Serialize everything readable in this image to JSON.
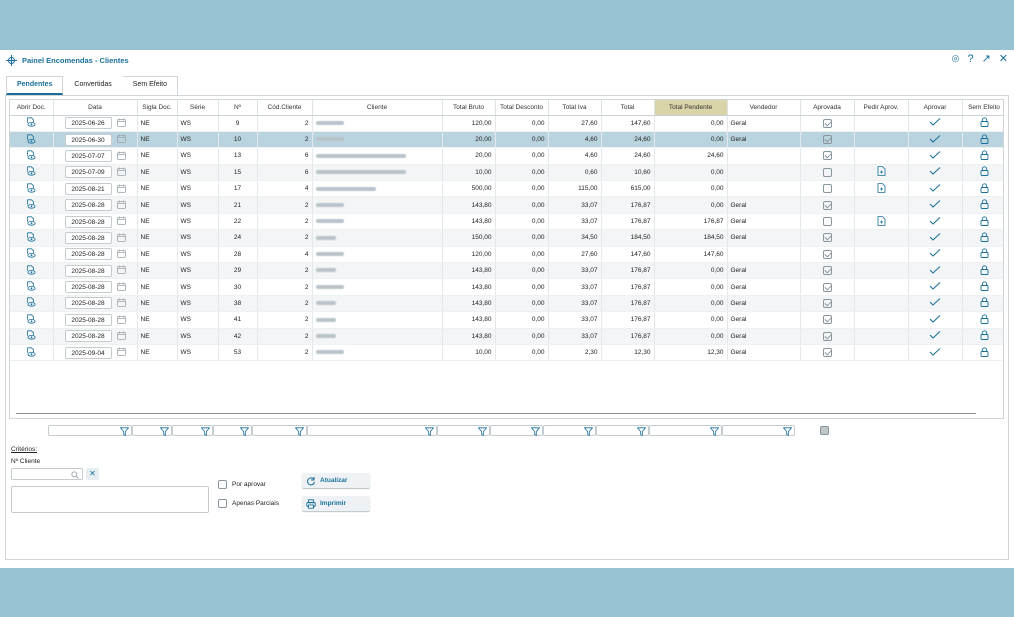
{
  "window": {
    "title": "Painel Encomendas - Clientes"
  },
  "tabs": [
    {
      "label": "Pendentes"
    },
    {
      "label": "Convertidas"
    },
    {
      "label": "Sem Efeito"
    }
  ],
  "columns": [
    "Abrir Doc.",
    "Data",
    "Sigla Doc.",
    "Série",
    "Nº",
    "Cód.Cliente",
    "Cliente",
    "Total Bruto",
    "Total Desconto",
    "Total Iva",
    "Total",
    "Total Pendente",
    "Vendedor",
    "Aprovada",
    "Pedir Aprov.",
    "Aprovar",
    "Sem Efeito"
  ],
  "rows": [
    {
      "data": "2025-06-26",
      "sigla": "NE",
      "serie": "WS",
      "n": "9",
      "cod": "2",
      "bruto": "120,00",
      "desc": "0,00",
      "iva": "27,60",
      "total": "147,60",
      "pend": "0,00",
      "vend": "Geral",
      "aprovada": true,
      "pedir": false
    },
    {
      "data": "2025-06-30",
      "sigla": "NE",
      "serie": "WS",
      "n": "10",
      "cod": "2",
      "bruto": "20,00",
      "desc": "0,00",
      "iva": "4,60",
      "total": "24,60",
      "pend": "0,00",
      "vend": "Geral",
      "aprovada": true,
      "pedir": false
    },
    {
      "data": "2025-07-07",
      "sigla": "NE",
      "serie": "WS",
      "n": "13",
      "cod": "6",
      "bruto": "20,00",
      "desc": "0,00",
      "iva": "4,60",
      "total": "24,60",
      "pend": "24,60",
      "vend": "",
      "aprovada": true,
      "pedir": false
    },
    {
      "data": "2025-07-09",
      "sigla": "NE",
      "serie": "WS",
      "n": "15",
      "cod": "6",
      "bruto": "10,00",
      "desc": "0,00",
      "iva": "0,60",
      "total": "10,60",
      "pend": "0,00",
      "vend": "",
      "aprovada": false,
      "pedir": true
    },
    {
      "data": "2025-08-21",
      "sigla": "NE",
      "serie": "WS",
      "n": "17",
      "cod": "4",
      "bruto": "500,00",
      "desc": "0,00",
      "iva": "115,00",
      "total": "615,00",
      "pend": "0,00",
      "vend": "",
      "aprovada": false,
      "pedir": true
    },
    {
      "data": "2025-08-28",
      "sigla": "NE",
      "serie": "WS",
      "n": "21",
      "cod": "2",
      "bruto": "143,80",
      "desc": "0,00",
      "iva": "33,07",
      "total": "176,87",
      "pend": "0,00",
      "vend": "Geral",
      "aprovada": true,
      "pedir": false
    },
    {
      "data": "2025-08-28",
      "sigla": "NE",
      "serie": "WS",
      "n": "22",
      "cod": "2",
      "bruto": "143,80",
      "desc": "0,00",
      "iva": "33,07",
      "total": "176,87",
      "pend": "176,87",
      "vend": "Geral",
      "aprovada": false,
      "pedir": true
    },
    {
      "data": "2025-08-28",
      "sigla": "NE",
      "serie": "WS",
      "n": "24",
      "cod": "2",
      "bruto": "150,00",
      "desc": "0,00",
      "iva": "34,50",
      "total": "184,50",
      "pend": "184,50",
      "vend": "Geral",
      "aprovada": true,
      "pedir": false
    },
    {
      "data": "2025-08-28",
      "sigla": "NE",
      "serie": "WS",
      "n": "28",
      "cod": "4",
      "bruto": "120,00",
      "desc": "0,00",
      "iva": "27,60",
      "total": "147,60",
      "pend": "147,60",
      "vend": "",
      "aprovada": true,
      "pedir": false
    },
    {
      "data": "2025-08-28",
      "sigla": "NE",
      "serie": "WS",
      "n": "29",
      "cod": "2",
      "bruto": "143,80",
      "desc": "0,00",
      "iva": "33,07",
      "total": "176,87",
      "pend": "0,00",
      "vend": "Geral",
      "aprovada": true,
      "pedir": false
    },
    {
      "data": "2025-08-28",
      "sigla": "NE",
      "serie": "WS",
      "n": "30",
      "cod": "2",
      "bruto": "143,80",
      "desc": "0,00",
      "iva": "33,07",
      "total": "176,87",
      "pend": "0,00",
      "vend": "Geral",
      "aprovada": true,
      "pedir": false
    },
    {
      "data": "2025-08-28",
      "sigla": "NE",
      "serie": "WS",
      "n": "38",
      "cod": "2",
      "bruto": "143,80",
      "desc": "0,00",
      "iva": "33,07",
      "total": "176,87",
      "pend": "0,00",
      "vend": "Geral",
      "aprovada": true,
      "pedir": false
    },
    {
      "data": "2025-08-28",
      "sigla": "NE",
      "serie": "WS",
      "n": "41",
      "cod": "2",
      "bruto": "143,80",
      "desc": "0,00",
      "iva": "33,07",
      "total": "176,87",
      "pend": "0,00",
      "vend": "Geral",
      "aprovada": true,
      "pedir": false
    },
    {
      "data": "2025-08-28",
      "sigla": "NE",
      "serie": "WS",
      "n": "42",
      "cod": "2",
      "bruto": "143,80",
      "desc": "0,00",
      "iva": "33,07",
      "total": "176,87",
      "pend": "0,00",
      "vend": "Geral",
      "aprovada": true,
      "pedir": false
    },
    {
      "data": "2025-09-04",
      "sigla": "NE",
      "serie": "WS",
      "n": "53",
      "cod": "2",
      "bruto": "10,00",
      "desc": "0,00",
      "iva": "2,30",
      "total": "12,30",
      "pend": "12,30",
      "vend": "Geral",
      "aprovada": true,
      "pedir": false
    }
  ],
  "criteria": {
    "title": "Critérios:",
    "cliente_label": "Nº Cliente",
    "por_aprovar": "Por aprovar",
    "apenas_parciais": "Apenas Parciais",
    "refresh": "Atualizar",
    "print": "Imprimir"
  },
  "colors": {
    "accent": "#1a6f9a",
    "selected_row": "#b9d4df",
    "highlight_header": "#d9d5a8",
    "frame": "#97c4d3"
  }
}
